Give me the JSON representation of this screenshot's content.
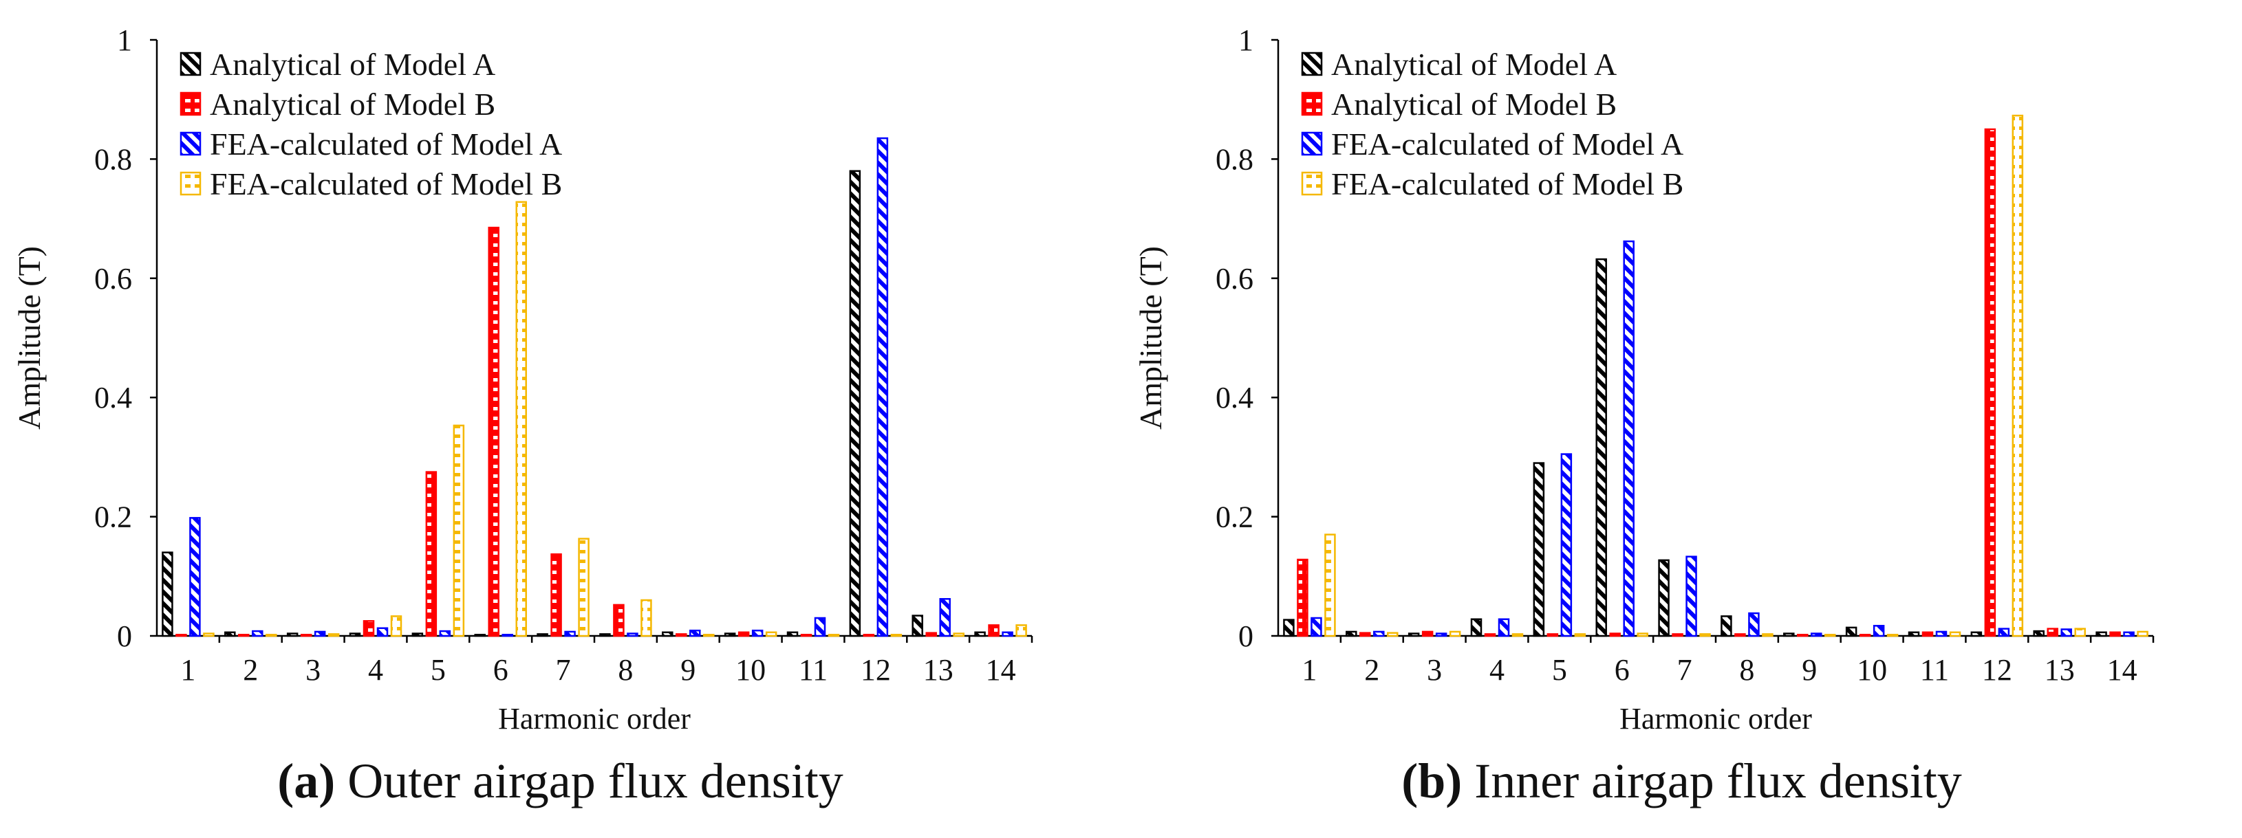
{
  "legend": [
    "Analytical of Model A",
    "Analytical of Model B",
    "FEA-calculated of Model A",
    "FEA-calculated of Model B"
  ],
  "series_styles": [
    {
      "name": "Analytical of Model A",
      "color": "#000000",
      "pattern": "hatch-black"
    },
    {
      "name": "Analytical of Model B",
      "color": "#ff0000",
      "pattern": "brick-red"
    },
    {
      "name": "FEA-calculated of Model A",
      "color": "#0000ff",
      "pattern": "hatch-blue"
    },
    {
      "name": "FEA-calculated of Model B",
      "color": "#f5b800",
      "pattern": "dash-yellow"
    }
  ],
  "panels": [
    {
      "label_letter": "(a)",
      "label_text": " Outer airgap flux density"
    },
    {
      "label_letter": "(b)",
      "label_text": " Inner airgap flux density"
    }
  ],
  "chart_data": [
    {
      "type": "bar",
      "title": "(a) Outer airgap flux density",
      "xlabel": "Harmonic order",
      "ylabel": "Amplitude (T)",
      "ylim": [
        0,
        1
      ],
      "yticks": [
        "0",
        "0.2",
        "0.4",
        "0.6",
        "0.8",
        "1"
      ],
      "ytick_values": [
        0,
        0.2,
        0.4,
        0.6,
        0.8,
        1
      ],
      "categories": [
        "1",
        "2",
        "3",
        "4",
        "5",
        "6",
        "7",
        "8",
        "9",
        "10",
        "11",
        "12",
        "13",
        "14"
      ],
      "series": [
        {
          "name": "Analytical of Model A",
          "values": [
            0.14,
            0.006,
            0.004,
            0.004,
            0.004,
            0.002,
            0.003,
            0.003,
            0.006,
            0.004,
            0.006,
            0.78,
            0.034,
            0.006
          ]
        },
        {
          "name": "Analytical of Model B",
          "values": [
            0.002,
            0.002,
            0.002,
            0.025,
            0.275,
            0.685,
            0.137,
            0.052,
            0.003,
            0.006,
            0.002,
            0.002,
            0.005,
            0.018
          ]
        },
        {
          "name": "FEA-calculated of Model A",
          "values": [
            0.198,
            0.008,
            0.007,
            0.013,
            0.008,
            0.002,
            0.007,
            0.004,
            0.009,
            0.009,
            0.03,
            0.835,
            0.062,
            0.006
          ]
        },
        {
          "name": "FEA-calculated of Model B",
          "values": [
            0.004,
            0.002,
            0.003,
            0.033,
            0.353,
            0.728,
            0.163,
            0.06,
            0.002,
            0.006,
            0.002,
            0.002,
            0.004,
            0.018
          ]
        }
      ]
    },
    {
      "type": "bar",
      "title": "(b) Inner airgap flux density",
      "xlabel": "Harmonic order",
      "ylabel": "Amplitude (T)",
      "ylim": [
        0,
        1
      ],
      "yticks": [
        "0",
        "0.2",
        "0.4",
        "0.6",
        "0.8",
        "1"
      ],
      "ytick_values": [
        0,
        0.2,
        0.4,
        0.6,
        0.8,
        1
      ],
      "categories": [
        "1",
        "2",
        "3",
        "4",
        "5",
        "6",
        "7",
        "8",
        "9",
        "10",
        "11",
        "12",
        "13",
        "14"
      ],
      "series": [
        {
          "name": "Analytical of Model A",
          "values": [
            0.027,
            0.007,
            0.004,
            0.028,
            0.29,
            0.632,
            0.127,
            0.033,
            0.004,
            0.014,
            0.006,
            0.006,
            0.008,
            0.006
          ]
        },
        {
          "name": "Analytical of Model B",
          "values": [
            0.128,
            0.005,
            0.007,
            0.003,
            0.003,
            0.004,
            0.003,
            0.003,
            0.002,
            0.002,
            0.006,
            0.85,
            0.012,
            0.006
          ]
        },
        {
          "name": "FEA-calculated of Model A",
          "values": [
            0.03,
            0.007,
            0.004,
            0.028,
            0.305,
            0.662,
            0.133,
            0.038,
            0.004,
            0.017,
            0.007,
            0.012,
            0.011,
            0.006
          ]
        },
        {
          "name": "FEA-calculated of Model B",
          "values": [
            0.17,
            0.005,
            0.007,
            0.003,
            0.003,
            0.004,
            0.003,
            0.003,
            0.002,
            0.002,
            0.006,
            0.873,
            0.012,
            0.007
          ]
        }
      ]
    }
  ]
}
